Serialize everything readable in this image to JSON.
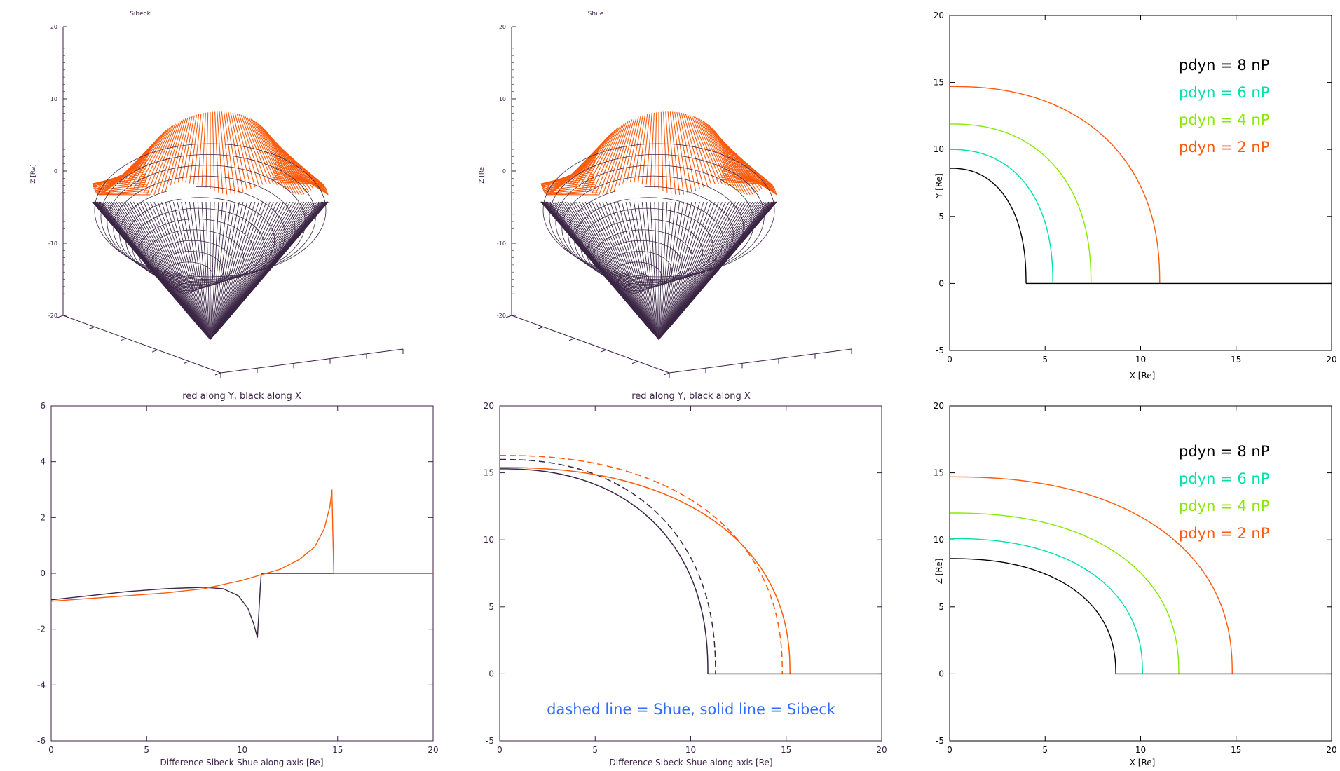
{
  "colors": {
    "axis": "#3b1f46",
    "dark": "#3b2545",
    "orange": "#ff5a0a",
    "cyan": "#00e0a8",
    "lime": "#88ea00",
    "blue": "#2f6bff",
    "black": "#000000"
  },
  "chart_data": [
    {
      "id": "sibeck3d",
      "type": "surface-3d",
      "title": "Sibeck",
      "zlabel": "Z [Re]",
      "z_ticks": [
        "20",
        "10",
        "0",
        "-10",
        "-20"
      ],
      "series": [
        {
          "color": "orange"
        },
        {
          "color": "dark"
        }
      ]
    },
    {
      "id": "shue3d",
      "type": "surface-3d",
      "title": "Shue",
      "zlabel": "Z [Re]",
      "z_ticks": [
        "20",
        "10",
        "0",
        "-10",
        "-20"
      ],
      "series": [
        {
          "color": "orange"
        },
        {
          "color": "dark"
        }
      ]
    },
    {
      "id": "xy",
      "type": "line",
      "xlabel": "X [Re]",
      "ylabel": "Y [Re]",
      "xlim": [
        0,
        20
      ],
      "ylim": [
        -5,
        20
      ],
      "xticks": [
        0,
        5,
        10,
        15,
        20
      ],
      "yticks": [
        -5,
        0,
        5,
        10,
        15,
        20
      ],
      "legend": [
        {
          "label": "pdyn = 8 nP",
          "color": "black"
        },
        {
          "label": "pdyn = 6 nP",
          "color": "cyan"
        },
        {
          "label": "pdyn = 4 nP",
          "color": "lime"
        },
        {
          "label": "pdyn = 2 nP",
          "color": "orange"
        }
      ],
      "series": [
        {
          "color": "black",
          "r0": 8.6,
          "x0": 4.0
        },
        {
          "color": "cyan",
          "r0": 10.0,
          "x0": 5.4
        },
        {
          "color": "lime",
          "r0": 11.9,
          "x0": 7.4
        },
        {
          "color": "orange",
          "r0": 14.7,
          "x0": 11.0
        }
      ],
      "x_axis_line": {
        "color": "black",
        "from": 4.0,
        "to": 20,
        "y": 0
      }
    },
    {
      "id": "diff",
      "type": "line",
      "title": "red along Y, black along X",
      "xlabel": "Difference Sibeck-Shue along axis [Re]",
      "xlim": [
        0,
        20
      ],
      "ylim": [
        -6,
        6
      ],
      "xticks": [
        0,
        5,
        10,
        15,
        20
      ],
      "yticks": [
        -6,
        -4,
        -2,
        0,
        2,
        4,
        6
      ],
      "series": [
        {
          "color": "dark",
          "x": [
            0,
            2,
            4,
            6,
            8,
            9,
            9.8,
            10.3,
            10.6,
            10.8,
            10.95,
            11.0,
            20
          ],
          "y": [
            -0.95,
            -0.8,
            -0.65,
            -0.55,
            -0.5,
            -0.55,
            -0.8,
            -1.25,
            -1.8,
            -2.3,
            -0.5,
            0,
            0
          ]
        },
        {
          "color": "orange",
          "x": [
            0,
            3,
            6,
            8,
            10,
            12,
            13,
            13.8,
            14.3,
            14.6,
            14.7,
            14.75,
            14.8,
            20
          ],
          "y": [
            -1.0,
            -0.85,
            -0.7,
            -0.55,
            -0.25,
            0.15,
            0.5,
            0.95,
            1.6,
            2.4,
            3.0,
            1.5,
            0,
            0
          ]
        }
      ]
    },
    {
      "id": "compare",
      "type": "line",
      "title": "red along Y, black along X",
      "xlabel": "Difference Sibeck-Shue along axis [Re]",
      "xlim": [
        0,
        20
      ],
      "ylim": [
        -5,
        20
      ],
      "xticks": [
        0,
        5,
        10,
        15,
        20
      ],
      "yticks": [
        -5,
        0,
        5,
        10,
        15,
        20
      ],
      "annotation": "dashed line = Shue, solid line = Sibeck",
      "series": [
        {
          "color": "dark",
          "style": "solid",
          "r0": 15.3,
          "x0": 10.9
        },
        {
          "color": "dark",
          "style": "dashed",
          "r0": 16.0,
          "x0": 11.3
        },
        {
          "color": "orange",
          "style": "solid",
          "r0": 15.4,
          "x0": 15.2
        },
        {
          "color": "orange",
          "style": "dashed",
          "r0": 16.3,
          "x0": 14.8
        }
      ],
      "x_axis_line": {
        "color": "black",
        "from": 10.9,
        "to": 20,
        "y": 0
      }
    },
    {
      "id": "xz",
      "type": "line",
      "xlabel": "X [Re]",
      "ylabel": "Z [Re]",
      "xlim": [
        0,
        20
      ],
      "ylim": [
        -5,
        20
      ],
      "xticks": [
        0,
        5,
        10,
        15,
        20
      ],
      "yticks": [
        -5,
        0,
        5,
        10,
        15,
        20
      ],
      "legend": [
        {
          "label": "pdyn = 8 nP",
          "color": "black"
        },
        {
          "label": "pdyn = 6 nP",
          "color": "cyan"
        },
        {
          "label": "pdyn = 4 nP",
          "color": "lime"
        },
        {
          "label": "pdyn = 2 nP",
          "color": "orange"
        }
      ],
      "series": [
        {
          "color": "black",
          "r0": 8.6,
          "x0": 8.7
        },
        {
          "color": "cyan",
          "r0": 10.1,
          "x0": 10.1
        },
        {
          "color": "lime",
          "r0": 12.0,
          "x0": 12.0
        },
        {
          "color": "orange",
          "r0": 14.7,
          "x0": 14.8
        }
      ],
      "x_axis_line": {
        "color": "black",
        "from": 8.7,
        "to": 20,
        "y": 0
      }
    }
  ]
}
